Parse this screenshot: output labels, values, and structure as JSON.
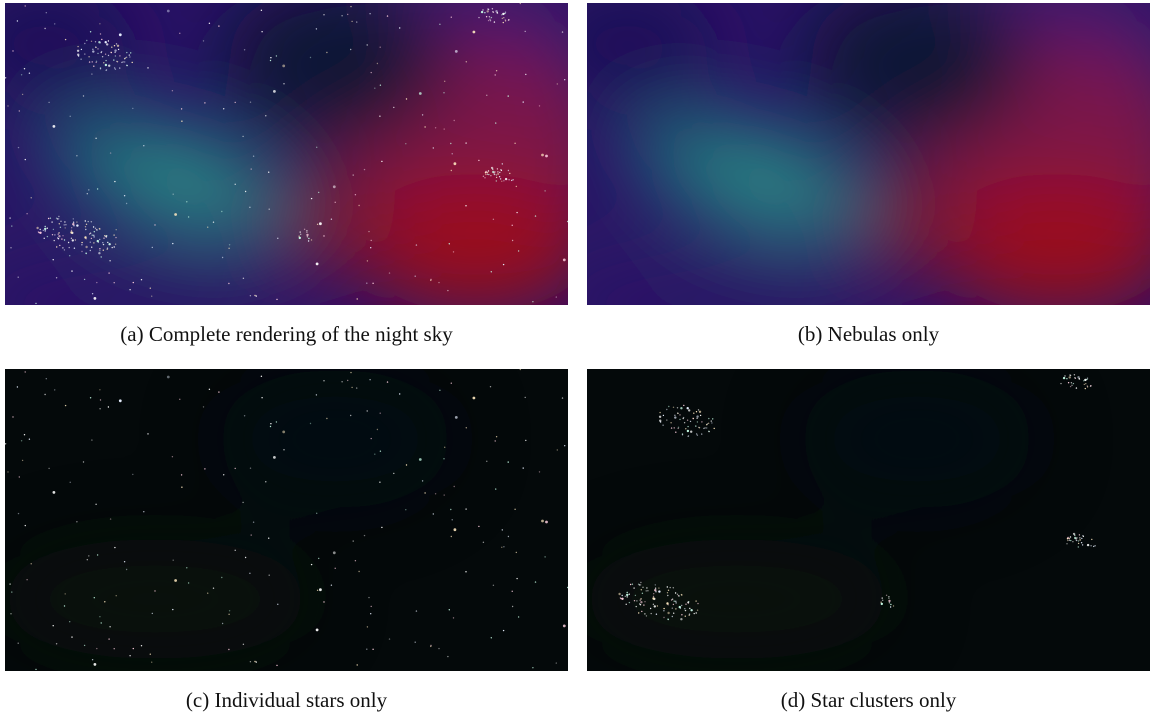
{
  "figure": {
    "panels": [
      {
        "label": "(a)",
        "caption": "Complete rendering of the night sky"
      },
      {
        "label": "(b)",
        "caption": "Nebulas only"
      },
      {
        "label": "(c)",
        "caption": "Individual stars only"
      },
      {
        "label": "(d)",
        "caption": "Star clusters only"
      }
    ]
  }
}
